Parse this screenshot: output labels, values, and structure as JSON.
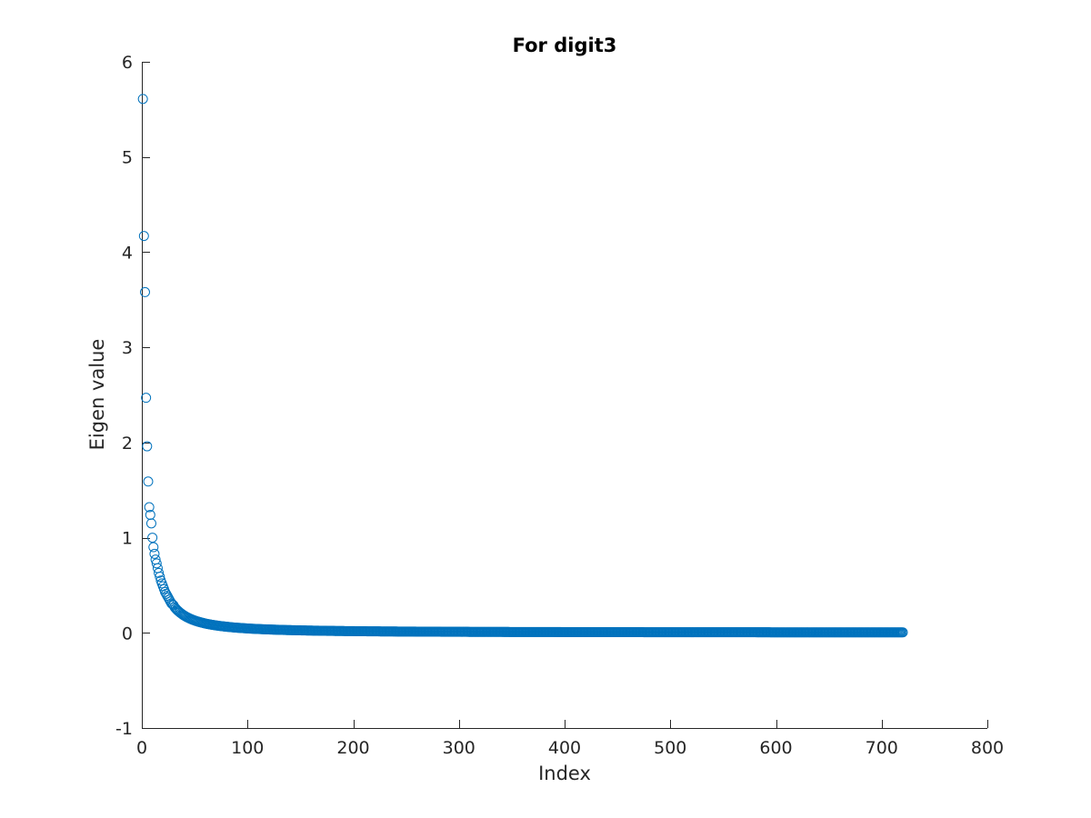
{
  "chart_data": {
    "type": "scatter",
    "title": "For digit3",
    "xlabel": "Index",
    "ylabel": "Eigen value",
    "xlim": [
      0,
      800
    ],
    "ylim": [
      -1,
      6
    ],
    "xticks": [
      "0",
      "100",
      "200",
      "300",
      "400",
      "500",
      "600",
      "700",
      "800"
    ],
    "yticks": [
      "-1",
      "0",
      "1",
      "2",
      "3",
      "4",
      "5",
      "6"
    ],
    "grid": false,
    "marker": "circle",
    "marker_color": "#0072BD",
    "point_count": 720,
    "head_values": [
      5.61,
      4.17,
      3.58,
      2.47,
      1.96,
      1.59,
      1.32,
      1.24,
      1.15,
      1.0,
      0.9,
      0.83,
      0.77,
      0.73,
      0.68,
      0.63,
      0.59,
      0.55,
      0.52,
      0.49,
      0.46,
      0.43,
      0.41,
      0.39,
      0.37,
      0.35,
      0.33,
      0.31,
      0.3,
      0.29
    ],
    "decay": {
      "start_value": 0.29,
      "end_value": 0.003,
      "midpoint_value_at_index_100": 0.045,
      "value_at_index_200": 0.02
    }
  }
}
